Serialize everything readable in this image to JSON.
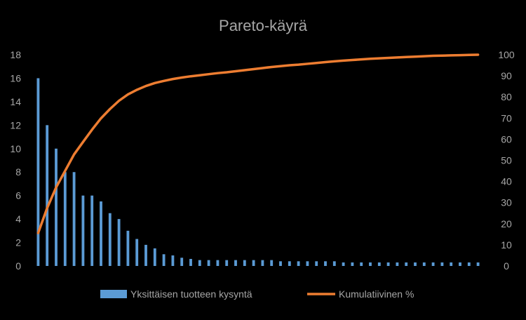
{
  "chart_data": {
    "type": "bar",
    "title": "Pareto-käyrä",
    "xlabel": "",
    "ylabel": "",
    "y_left": {
      "ylim": [
        0,
        18
      ],
      "ticks": [
        "0",
        "2",
        "4",
        "6",
        "8",
        "10",
        "12",
        "14",
        "16",
        "18"
      ]
    },
    "y_right": {
      "ylim": [
        0,
        100
      ],
      "ticks": [
        "0",
        "10",
        "20",
        "30",
        "40",
        "50",
        "60",
        "70",
        "80",
        "90",
        "100"
      ]
    },
    "grid": false,
    "legend_position": "bottom",
    "series": [
      {
        "name": "Yksittäisen tuotteen kysyntä",
        "type": "bar",
        "axis": "left",
        "color": "#5b9bd5",
        "values": [
          16,
          12,
          10,
          8,
          8,
          6,
          6,
          5.5,
          4.5,
          4,
          3,
          2.3,
          1.8,
          1.5,
          1.0,
          0.9,
          0.7,
          0.6,
          0.5,
          0.5,
          0.5,
          0.5,
          0.5,
          0.5,
          0.5,
          0.5,
          0.5,
          0.4,
          0.4,
          0.4,
          0.4,
          0.4,
          0.4,
          0.4,
          0.3,
          0.3,
          0.3,
          0.3,
          0.3,
          0.3,
          0.3,
          0.3,
          0.3,
          0.3,
          0.3,
          0.3,
          0.3,
          0.3,
          0.3,
          0.3
        ]
      },
      {
        "name": "Kumulatiivinen %",
        "type": "line",
        "axis": "right",
        "color": "#ed7d31",
        "values": [
          15.6,
          27.4,
          37.2,
          45.0,
          52.8,
          58.7,
          64.5,
          69.9,
          74.3,
          78.2,
          81.2,
          83.4,
          85.2,
          86.6,
          87.6,
          88.5,
          89.2,
          89.8,
          90.3,
          90.8,
          91.3,
          91.7,
          92.2,
          92.7,
          93.2,
          93.7,
          94.2,
          94.6,
          95.0,
          95.3,
          95.7,
          96.1,
          96.5,
          96.9,
          97.2,
          97.5,
          97.8,
          98.1,
          98.3,
          98.5,
          98.7,
          98.9,
          99.1,
          99.3,
          99.5,
          99.6,
          99.7,
          99.8,
          99.9,
          100
        ]
      }
    ]
  }
}
